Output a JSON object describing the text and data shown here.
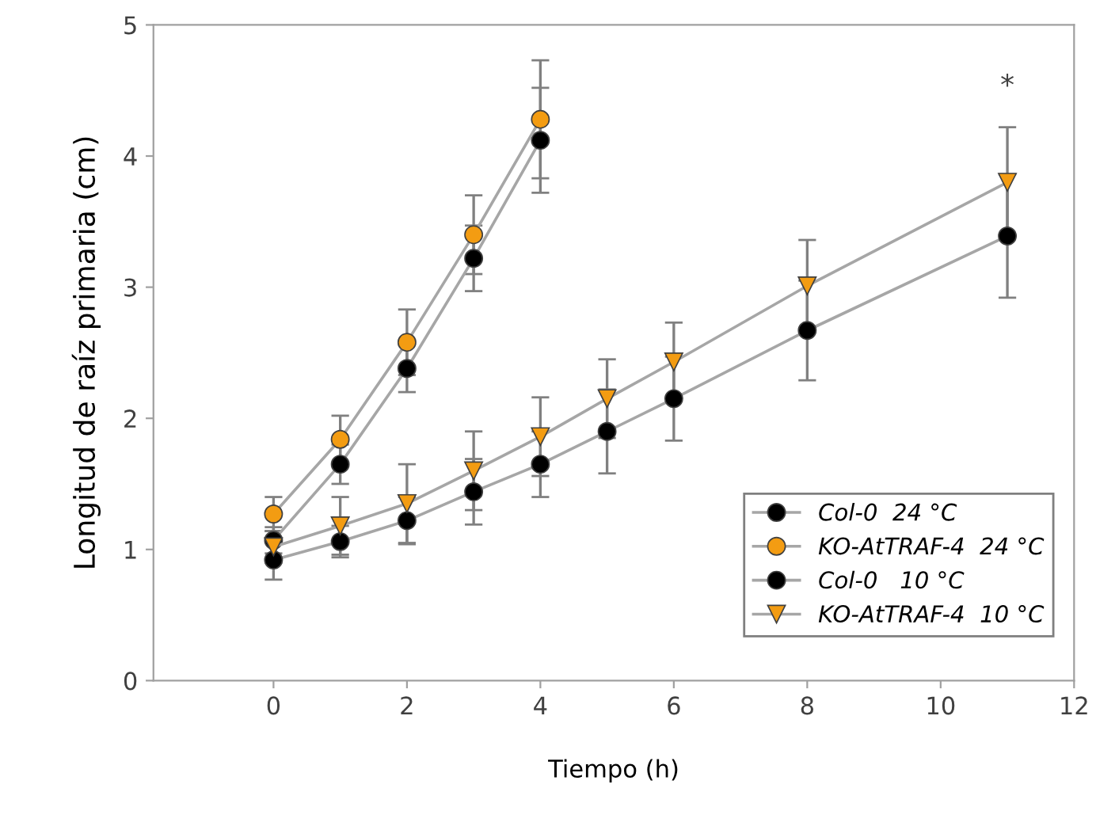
{
  "chart_data": {
    "type": "line",
    "xlabel": "Tiempo (h)",
    "ylabel": "Longitud de raíz primaria (cm)",
    "xlim": [
      -1.8,
      12
    ],
    "xticks": [
      0,
      2,
      4,
      6,
      8,
      10,
      12
    ],
    "ylim": [
      0,
      5
    ],
    "yticks": [
      0,
      1,
      2,
      3,
      4,
      5
    ],
    "grid": false,
    "legend": "bottom right",
    "annotations": [
      "*"
    ],
    "series": [
      {
        "name": "Col-0  24 °C",
        "color": "#000000",
        "marker": "circle",
        "x": [
          0,
          1,
          2,
          3,
          4
        ],
        "values": [
          1.07,
          1.65,
          2.38,
          3.22,
          4.12
        ],
        "errors": [
          0.1,
          0.15,
          0.18,
          0.25,
          0.4
        ]
      },
      {
        "name": "KO-AtTRAF-4  24 °C",
        "color": "#f39c12",
        "marker": "circle",
        "x": [
          0,
          1,
          2,
          3,
          4
        ],
        "values": [
          1.27,
          1.84,
          2.58,
          3.4,
          4.28
        ],
        "errors": [
          0.13,
          0.18,
          0.25,
          0.3,
          0.45
        ]
      },
      {
        "name": "Col-0   10 °C",
        "color": "#000000",
        "marker": "circle",
        "x": [
          0,
          1,
          2,
          3,
          4,
          5,
          6,
          8,
          11
        ],
        "values": [
          0.92,
          1.06,
          1.22,
          1.44,
          1.65,
          1.9,
          2.15,
          2.67,
          3.39
        ],
        "errors": [
          0.15,
          0.12,
          0.18,
          0.25,
          0.25,
          0.32,
          0.32,
          0.38,
          0.47
        ]
      },
      {
        "name": "KO-AtTRAF-4  10 °C",
        "color": "#f39c12",
        "marker": "triangle",
        "x": [
          0,
          1,
          2,
          3,
          4,
          5,
          6,
          8,
          11
        ],
        "values": [
          1.02,
          1.18,
          1.35,
          1.6,
          1.86,
          2.15,
          2.43,
          3.01,
          3.8
        ],
        "errors": [
          0.12,
          0.22,
          0.3,
          0.3,
          0.3,
          0.3,
          0.3,
          0.35,
          0.42
        ]
      }
    ]
  }
}
